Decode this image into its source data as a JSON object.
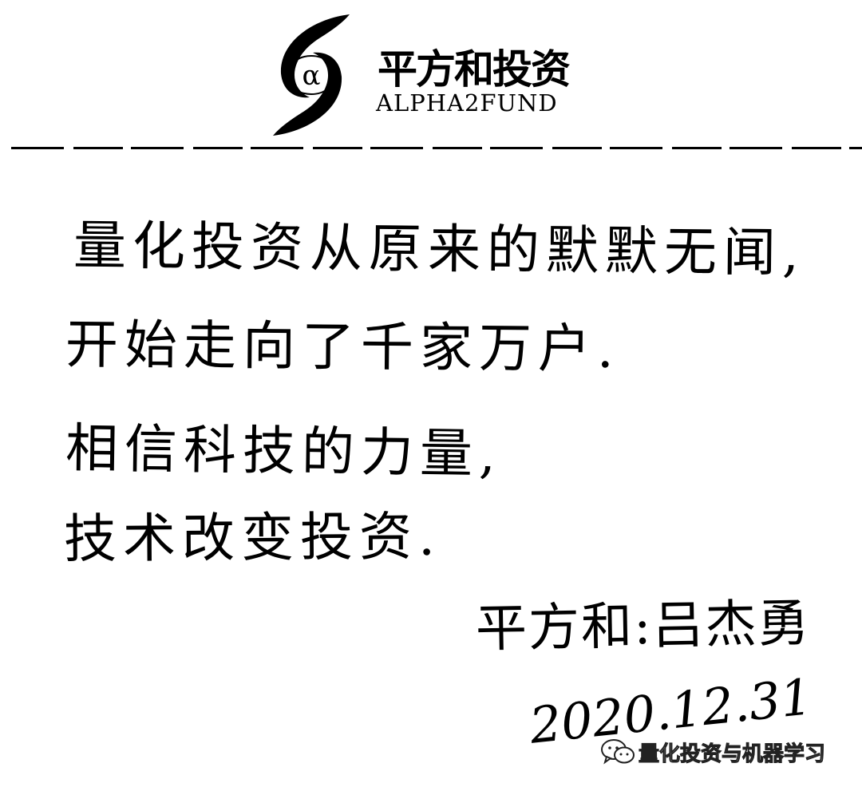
{
  "letterhead": {
    "logo_symbol": "α",
    "company_name_cn": "平方和投资",
    "company_name_en": "ALPHA2FUND",
    "logo_icon": "alpha-swirl-logo"
  },
  "letter": {
    "lines": [
      "量化投资从原来的默默无闻,",
      "开始走向了千家万户.",
      "相信科技的力量,",
      "技术改变投资."
    ],
    "signature": "平方和:吕杰勇",
    "date": "2020.12.31"
  },
  "watermark": {
    "icon": "wechat-icon",
    "text": "量化投资与机器学习"
  }
}
